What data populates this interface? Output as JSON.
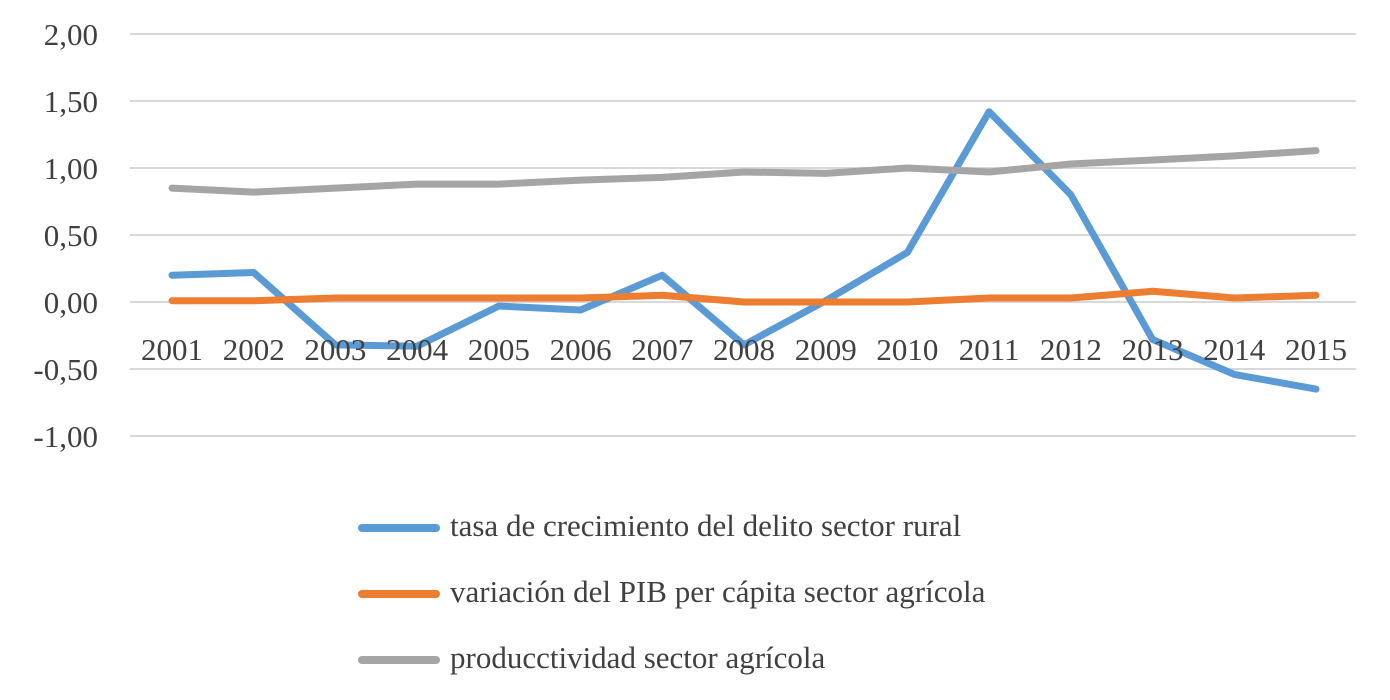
{
  "chart_data": {
    "type": "line",
    "categories": [
      "2001",
      "2002",
      "2003",
      "2004",
      "2005",
      "2006",
      "2007",
      "2008",
      "2009",
      "2010",
      "2011",
      "2012",
      "2013",
      "2014",
      "2015"
    ],
    "y_ticks": [
      "2,00",
      "1,50",
      "1,00",
      "0,50",
      "0,00",
      "-0,50",
      "-1,00"
    ],
    "ylim": [
      -1.0,
      2.0
    ],
    "grid": true,
    "legend_position": "bottom",
    "series": [
      {
        "name": "tasa de crecimiento del delito sector rural",
        "color": "#5B9BD5",
        "values": [
          0.2,
          0.22,
          -0.32,
          -0.33,
          -0.03,
          -0.06,
          0.2,
          -0.32,
          0.01,
          0.37,
          1.42,
          0.8,
          -0.28,
          -0.54,
          -0.65
        ]
      },
      {
        "name": "variación del PIB per cápita sector agrícola",
        "color": "#ED7D31",
        "values": [
          0.01,
          0.01,
          0.03,
          0.03,
          0.03,
          0.03,
          0.05,
          0.0,
          0.0,
          0.0,
          0.03,
          0.03,
          0.08,
          0.03,
          0.05
        ]
      },
      {
        "name": "producctividad sector agrícola",
        "color": "#A5A5A5",
        "values": [
          0.85,
          0.82,
          0.85,
          0.88,
          0.88,
          0.91,
          0.93,
          0.97,
          0.96,
          1.0,
          0.97,
          1.03,
          1.06,
          1.09,
          1.13
        ]
      }
    ]
  }
}
